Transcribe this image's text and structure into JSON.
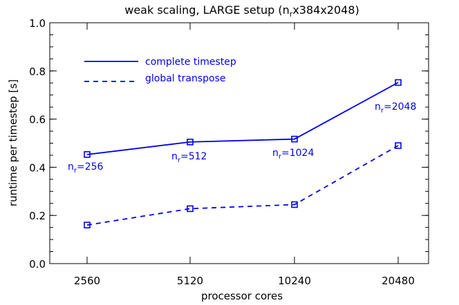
{
  "chart_data": {
    "type": "line",
    "title": "weak scaling, LARGE setup (n",
    "title_sub": "r",
    "title_tail": "x384x2048)",
    "xlabel": "processor cores",
    "ylabel": "runtime per timestep [s]",
    "categories": [
      "2560",
      "5120",
      "10240",
      "20480"
    ],
    "ylim": [
      0.0,
      1.0
    ],
    "yticks": [
      "0.0",
      "0.2",
      "0.4",
      "0.6",
      "0.8",
      "1.0"
    ],
    "series": [
      {
        "name": "complete timestep",
        "style": "solid",
        "values": [
          0.453,
          0.505,
          0.517,
          0.752
        ]
      },
      {
        "name": "global transpose",
        "style": "dashed",
        "values": [
          0.16,
          0.228,
          0.245,
          0.49
        ]
      }
    ],
    "annotations": [
      {
        "prefix": "n",
        "sub": "r",
        "suffix": "=256"
      },
      {
        "prefix": "n",
        "sub": "r",
        "suffix": "=512"
      },
      {
        "prefix": "n",
        "sub": "r",
        "suffix": "=1024"
      },
      {
        "prefix": "n",
        "sub": "r",
        "suffix": "=2048"
      }
    ],
    "grid": false,
    "legend_position": "top-left",
    "color": "#0000ee"
  }
}
